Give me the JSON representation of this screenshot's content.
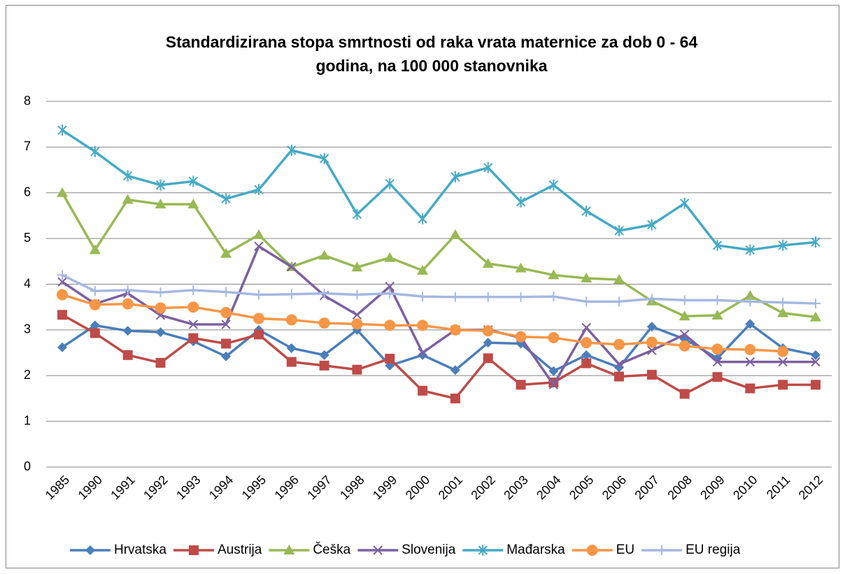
{
  "chart_data": {
    "type": "line",
    "title": [
      "Standardizirana stopa smrtnosti od raka vrata maternice za dob 0 - 64",
      "godina, na 100 000 stanovnika"
    ],
    "categories": [
      "1985",
      "1990",
      "1991",
      "1992",
      "1993",
      "1994",
      "1995",
      "1996",
      "1997",
      "1998",
      "1999",
      "2000",
      "2001",
      "2002",
      "2003",
      "2004",
      "2005",
      "2006",
      "2007",
      "2008",
      "2009",
      "2010",
      "2011",
      "2012"
    ],
    "ylim": [
      0,
      8
    ],
    "yticks": [
      0,
      1,
      2,
      3,
      4,
      5,
      6,
      7,
      8
    ],
    "grid": true,
    "legend": "bottom",
    "series": [
      {
        "name": "Hrvatska",
        "color": "#4a7ebb",
        "marker": "diamond",
        "values": [
          2.62,
          3.1,
          2.98,
          2.95,
          2.75,
          2.42,
          3.0,
          2.6,
          2.45,
          3.0,
          2.22,
          2.45,
          2.12,
          2.72,
          2.7,
          2.1,
          2.45,
          2.18,
          3.07,
          2.8,
          2.38,
          3.13,
          2.6,
          2.45
        ]
      },
      {
        "name": "Austrija",
        "color": "#be4b48",
        "marker": "square",
        "values": [
          3.33,
          2.93,
          2.45,
          2.28,
          2.82,
          2.7,
          2.9,
          2.3,
          2.22,
          2.13,
          2.37,
          1.67,
          1.5,
          2.38,
          1.8,
          1.85,
          2.27,
          1.98,
          2.02,
          1.6,
          1.97,
          1.72,
          1.8,
          1.8
        ]
      },
      {
        "name": "Češka",
        "color": "#98b954",
        "marker": "triangle",
        "values": [
          6.0,
          4.75,
          5.85,
          5.75,
          5.75,
          4.67,
          5.08,
          4.38,
          4.63,
          4.37,
          4.58,
          4.3,
          5.08,
          4.45,
          4.35,
          4.2,
          4.13,
          4.1,
          3.63,
          3.3,
          3.32,
          3.75,
          3.37,
          3.28
        ]
      },
      {
        "name": "Slovenija",
        "color": "#7d60a0",
        "marker": "x",
        "values": [
          4.05,
          3.57,
          3.8,
          3.32,
          3.12,
          3.12,
          4.83,
          4.38,
          3.75,
          3.33,
          3.95,
          2.5,
          3.0,
          3.0,
          2.83,
          1.8,
          3.05,
          2.25,
          2.55,
          2.9,
          2.3,
          2.3,
          2.3,
          2.3
        ]
      },
      {
        "name": "Mađarska",
        "color": "#46aac5",
        "marker": "star",
        "values": [
          7.37,
          6.9,
          6.37,
          6.17,
          6.25,
          5.87,
          6.07,
          6.93,
          6.75,
          5.53,
          6.2,
          5.43,
          6.35,
          6.55,
          5.8,
          6.17,
          5.6,
          5.17,
          5.3,
          5.77,
          4.85,
          4.75,
          4.85,
          4.92
        ]
      },
      {
        "name": "EU",
        "color": "#f79646",
        "marker": "circle",
        "values": [
          3.77,
          3.55,
          3.57,
          3.48,
          3.5,
          3.38,
          3.25,
          3.22,
          3.15,
          3.13,
          3.1,
          3.1,
          3.0,
          2.98,
          2.85,
          2.83,
          2.72,
          2.68,
          2.73,
          2.65,
          2.58,
          2.57,
          2.53,
          null
        ]
      },
      {
        "name": "EU regija",
        "color": "#a5b8e0",
        "marker": "plus",
        "values": [
          4.2,
          3.85,
          3.87,
          3.82,
          3.87,
          3.83,
          3.77,
          3.78,
          3.8,
          3.77,
          3.8,
          3.73,
          3.72,
          3.72,
          3.72,
          3.73,
          3.62,
          3.62,
          3.68,
          3.65,
          3.65,
          3.62,
          3.6,
          3.58
        ]
      }
    ]
  }
}
